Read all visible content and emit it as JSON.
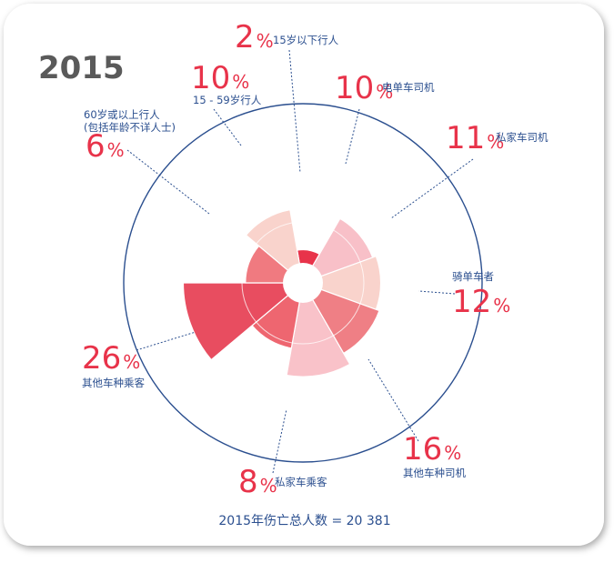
{
  "header": {
    "year_title": "2015"
  },
  "footer": {
    "total_label": "2015年伤亡总人数 = 20 381"
  },
  "chart_data": {
    "type": "polar-area",
    "title": "2015",
    "total": "20 381",
    "unit": "%",
    "categories": [
      {
        "label": "15岁以下行人",
        "value": 2,
        "color": "#e8334a"
      },
      {
        "label": "电单车司机",
        "value": 10,
        "color": "#f8c0c8"
      },
      {
        "label": "私家车司机",
        "value": 11,
        "color": "#f9d3cc"
      },
      {
        "label": "骑单车者",
        "value": 12,
        "color": "#ef7f85"
      },
      {
        "label": "其他车种司机",
        "value": 16,
        "color": "#f9c2c9"
      },
      {
        "label": "私家车乘客",
        "value": 8,
        "color": "#ee6670"
      },
      {
        "label": "其他车种乘客",
        "value": 26,
        "color": "#e84d60"
      },
      {
        "label": "60岁或以上行人\n(包括年龄不详人士)",
        "value": 6,
        "color": "#f07a80"
      },
      {
        "label": "15 - 59岁行人",
        "value": 10,
        "color": "#f9d3cc"
      }
    ]
  }
}
